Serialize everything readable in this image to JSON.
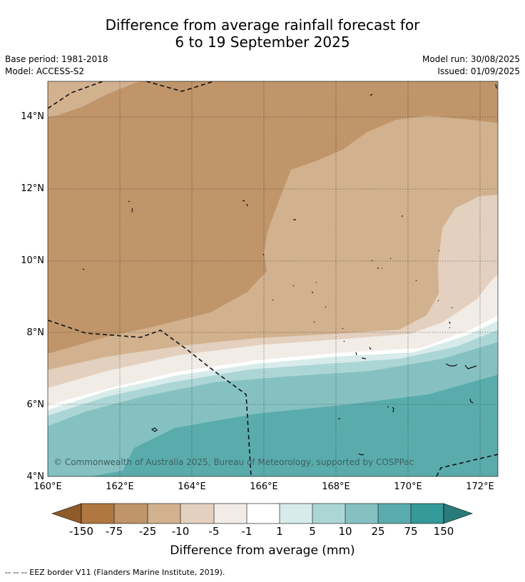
{
  "title_line1": "Difference from average rainfall forecast for",
  "title_line2": "6 to 19 September 2025",
  "base_period": "Base period: 1981-2018",
  "model": "Model: ACCESS-S2",
  "model_run": "Model run: 30/08/2025",
  "issued": "Issued: 01/09/2025",
  "copyright": "© Commonwealth of Australia 2025, Bureau of Meteorology, supported by COSPPac",
  "y_ticks": [
    "14°N",
    "12°N",
    "10°N",
    "8°N",
    "6°N",
    "4°N"
  ],
  "x_ticks": [
    "160°E",
    "162°E",
    "164°E",
    "166°E",
    "168°E",
    "170°E",
    "172°E"
  ],
  "colorbar": {
    "title": "Difference from average (mm)",
    "labels": [
      "-150",
      "-75",
      "-25",
      "-10",
      "-5",
      "-1",
      "1",
      "5",
      "10",
      "25",
      "75",
      "150"
    ],
    "colors": [
      "#8f5a2a",
      "#b07840",
      "#c0956a",
      "#d2b18f",
      "#e3d0bf",
      "#f2ece6",
      "#ffffff",
      "#d7ebea",
      "#acd6d6",
      "#86c1c1",
      "#5aacac",
      "#349999",
      "#2a7c7c"
    ]
  },
  "map_colors": {
    "lon_160_168": "#c0956a",
    "lon_168_170": "#d2b18f",
    "dry_light": "#e3d0bf",
    "near_zero_dry": "#f2ece6",
    "wet_1": "#d7ebea",
    "wet_2": "#acd6d6",
    "wet_3": "#86c1c1",
    "wet_4": "#5aacac"
  },
  "footer": "--  --  -- EEZ border V11 (Flanders Marine Institute, 2019)."
}
